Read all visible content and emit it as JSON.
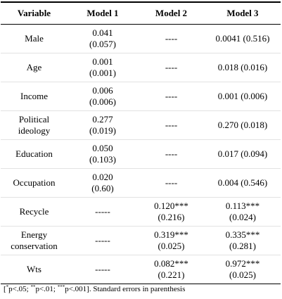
{
  "table": {
    "headers": [
      "Variable",
      "Model 1",
      "Model 2",
      "Model 3"
    ],
    "rows": [
      {
        "variable": [
          "Male"
        ],
        "m1": [
          "0.041",
          "(0.057)"
        ],
        "m2": [
          "----"
        ],
        "m3": [
          "0.0041 (0.516)"
        ]
      },
      {
        "variable": [
          "Age"
        ],
        "m1": [
          "0.001",
          "(0.001)"
        ],
        "m2": [
          "----"
        ],
        "m3": [
          "0.018 (0.016)"
        ]
      },
      {
        "variable": [
          "Income"
        ],
        "m1": [
          "0.006",
          "(0.006)"
        ],
        "m2": [
          "----"
        ],
        "m3": [
          "0.001 (0.006)"
        ]
      },
      {
        "variable": [
          "Political",
          "ideology"
        ],
        "m1": [
          "0.277",
          "(0.019)"
        ],
        "m2": [
          "----"
        ],
        "m3": [
          "0.270 (0.018)"
        ]
      },
      {
        "variable": [
          "Education"
        ],
        "m1": [
          "0.050",
          "(0.103)"
        ],
        "m2": [
          "----"
        ],
        "m3": [
          "0.017 (0.094)"
        ]
      },
      {
        "variable": [
          "Occupation"
        ],
        "m1": [
          "0.020",
          "(0.60)"
        ],
        "m2": [
          "----"
        ],
        "m3": [
          "0.004 (0.546)"
        ]
      },
      {
        "variable": [
          "Recycle"
        ],
        "m1": [
          "-----"
        ],
        "m2": [
          "0.120***",
          "(0.216)"
        ],
        "m3": [
          "0.113***",
          "(0.024)"
        ]
      },
      {
        "variable": [
          "Energy",
          "conservation"
        ],
        "m1": [
          "-----"
        ],
        "m2": [
          "0.319***",
          "(0.025)"
        ],
        "m3": [
          "0.335***",
          "(0.281)"
        ]
      },
      {
        "variable": [
          "Wts"
        ],
        "m1": [
          "-----"
        ],
        "m2": [
          "0.082***",
          "(0.221)"
        ],
        "m3": [
          "0.972***",
          "(0.025)"
        ]
      }
    ]
  },
  "note": {
    "open": "[",
    "s1": "*",
    "t1": "p<.05; ",
    "s2": "**",
    "t2": "p<.01; ",
    "s3": "***",
    "t3": "p<.001]. Standard errors in parenthesis"
  }
}
